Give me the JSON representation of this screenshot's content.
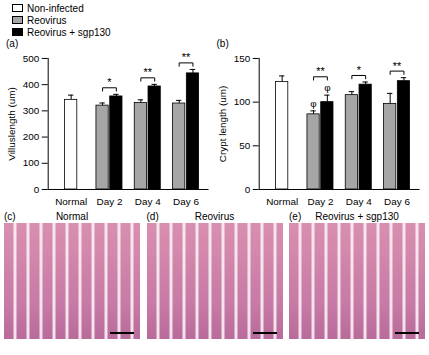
{
  "chart_data": [
    {
      "type": "bar",
      "title": "(a)",
      "ylabel": "Villuslength (um)",
      "categories": [
        "Normal",
        "Day 2",
        "Day 4",
        "Day 6"
      ],
      "series": [
        {
          "name": "Non-infected",
          "color": "#ffffff",
          "values": [
            342,
            null,
            null,
            null
          ],
          "errors": [
            18,
            null,
            null,
            null
          ]
        },
        {
          "name": "Reovirus",
          "color": "#a6a6a6",
          "values": [
            null,
            320,
            330,
            328
          ],
          "errors": [
            null,
            10,
            12,
            12
          ]
        },
        {
          "name": "Reovirus + sgp130",
          "color": "#000000",
          "values": [
            null,
            355,
            393,
            443
          ],
          "errors": [
            null,
            8,
            8,
            15
          ]
        }
      ],
      "ylim": [
        0,
        500
      ],
      "yticks": [
        0,
        100,
        200,
        300,
        400,
        500
      ],
      "legend": "top-left",
      "significance": [
        {
          "category": "Day 2",
          "label": "*"
        },
        {
          "category": "Day 4",
          "label": "**"
        },
        {
          "category": "Day 6",
          "label": "**"
        }
      ]
    },
    {
      "type": "bar",
      "title": "(b)",
      "ylabel": "Crypt length (um)",
      "categories": [
        "Normal",
        "Day 2",
        "Day 4",
        "Day 6"
      ],
      "series": [
        {
          "color": "#ffffff",
          "values": [
            123,
            null,
            null,
            null
          ],
          "errors": [
            7,
            null,
            null,
            null
          ]
        },
        {
          "color": "#a6a6a6",
          "values": [
            null,
            86,
            108,
            98
          ],
          "errors": [
            null,
            4,
            4,
            12
          ],
          "symbols": [
            null,
            "φ",
            null,
            null
          ]
        },
        {
          "color": "#000000",
          "values": [
            null,
            100,
            120,
            124
          ],
          "errors": [
            null,
            8,
            3,
            4
          ],
          "symbols": [
            null,
            "φ",
            null,
            null
          ]
        }
      ],
      "ylim": [
        0,
        150
      ],
      "yticks": [
        0,
        50,
        100,
        150
      ],
      "significance": [
        {
          "category": "Day 2",
          "label": "**"
        },
        {
          "category": "Day 4",
          "label": "*"
        },
        {
          "category": "Day 6",
          "label": "**"
        }
      ]
    }
  ],
  "image_panels": [
    {
      "label": "(c)",
      "title": "Normal"
    },
    {
      "label": "(d)",
      "title": "Reovirus"
    },
    {
      "label": "(e)",
      "title": "Reovirus + sgp130"
    }
  ]
}
